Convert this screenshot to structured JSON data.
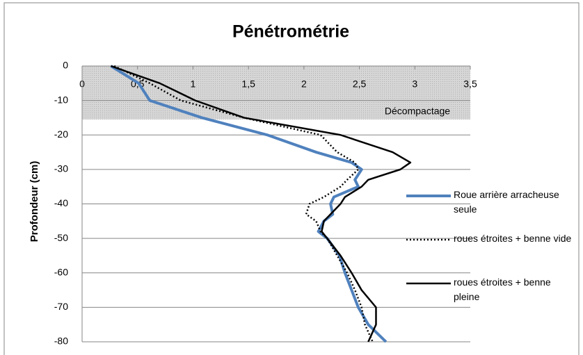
{
  "chart_data": {
    "type": "line",
    "title": "Pénétrométrie",
    "y_label": "Profondeur (cm)",
    "y": [
      0,
      -5,
      -10,
      -15,
      -20,
      -25,
      -28,
      -30,
      -33,
      -35,
      -38,
      -40,
      -43,
      -45,
      -48,
      -50,
      -55,
      -60,
      -65,
      -70,
      -75,
      -80
    ],
    "series": [
      {
        "name": "Roue arrière arracheuse seule",
        "color": "#4f81bd",
        "style": "solid",
        "width": 4,
        "values": [
          0.26,
          0.51,
          0.61,
          1.08,
          1.67,
          2.11,
          2.43,
          2.52,
          2.46,
          2.49,
          2.27,
          2.24,
          2.26,
          2.18,
          2.13,
          2.21,
          2.32,
          2.37,
          2.43,
          2.49,
          2.58,
          2.74
        ]
      },
      {
        "name": "roues étroites + benne vide",
        "color": "#000000",
        "style": "dotted",
        "width": 2.5,
        "values": [
          0.29,
          0.61,
          0.89,
          1.46,
          2.15,
          2.3,
          2.46,
          2.49,
          2.39,
          2.33,
          2.18,
          2.05,
          2.02,
          2.11,
          2.15,
          2.21,
          2.3,
          2.39,
          2.46,
          2.52,
          2.55,
          2.62
        ]
      },
      {
        "name": "roues étroites + benne pleine",
        "color": "#000000",
        "style": "solid",
        "width": 2.5,
        "values": [
          0.26,
          0.7,
          1.02,
          1.46,
          2.33,
          2.8,
          2.96,
          2.87,
          2.58,
          2.52,
          2.37,
          2.33,
          2.24,
          2.18,
          2.16,
          2.21,
          2.33,
          2.43,
          2.52,
          2.65,
          2.65,
          2.58
        ]
      }
    ],
    "xlim": [
      0,
      3.5
    ],
    "xticks": [
      0,
      {
        "value": 0.5,
        "label": "0,5"
      },
      1,
      {
        "value": 1.5,
        "label": "1,5"
      },
      2,
      {
        "value": 2.5,
        "label": "2,5"
      },
      3,
      {
        "value": 3.5,
        "label": "3,5"
      }
    ],
    "ylim": [
      -80,
      0
    ],
    "yticks": [
      0,
      -10,
      -20,
      -30,
      -40,
      -50,
      -60,
      -70,
      -80
    ],
    "band": {
      "label": "Décompactage",
      "ymin": -15.5,
      "ymax": 0
    },
    "grid": true,
    "legend": "right"
  }
}
